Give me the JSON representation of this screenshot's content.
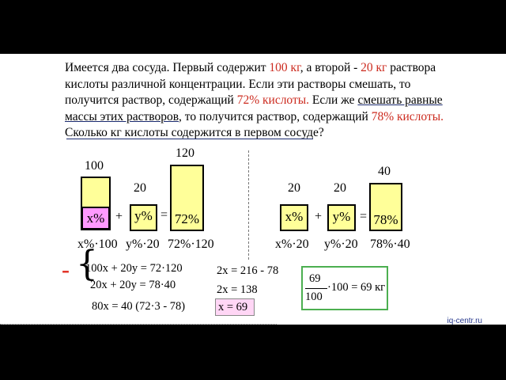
{
  "problem": {
    "l1_a": "Имеется два сосуда. Первый содержит ",
    "l1_b": "100 кг",
    "l1_c": ", а второй - ",
    "l1_d": "20 кг",
    "l1_e": " раствора",
    "l2": "кислоты различной концентрации. Если эти растворы смешать, то",
    "l3_a": "получится раствор, содержащий ",
    "l3_b": "72% кислоты.",
    "l3_c": " Если же ",
    "l3_d": "смешать равные",
    "l4_a": "массы этих растворов",
    "l4_b": ", то получится раствор, содержащий ",
    "l4_c": "78% кислоты.",
    "l5": "Сколько кг кислоты содержится в первом сосуде?"
  },
  "left": {
    "mass1": "100",
    "mass2": "20",
    "mass3": "120",
    "label1": "x%",
    "label2": "y%",
    "label3": "72%",
    "plus": "+",
    "eq": "=",
    "cap1": "x%·100",
    "cap2": "y%·20",
    "cap3": "72%·120"
  },
  "right": {
    "mass1": "20",
    "mass2": "20",
    "mass3": "40",
    "label1": "x%",
    "label2": "y%",
    "label3": "78%",
    "plus": "+",
    "eq": "=",
    "cap1": "x%·20",
    "cap2": "y%·20",
    "cap3": "78%·40"
  },
  "system": {
    "minus": "-",
    "brace": "{",
    "eq1": "100x + 20y = 72·120",
    "eq2": "20x + 20y = 78·40",
    "eq3": "80x = 40 (72·3 - 78)"
  },
  "solve": {
    "s1": "2x = 216 - 78",
    "s2": "2x = 138",
    "s3": "x = 69"
  },
  "final": {
    "num": "69",
    "den": "100",
    "rest": "·100 = 69 кг"
  },
  "site": "iq-centr.ru",
  "colors": {
    "accent_red": "#cc2a1e",
    "vessel_fill": "#ffff99",
    "pink": "#ff99ff",
    "green": "#4caf50"
  }
}
